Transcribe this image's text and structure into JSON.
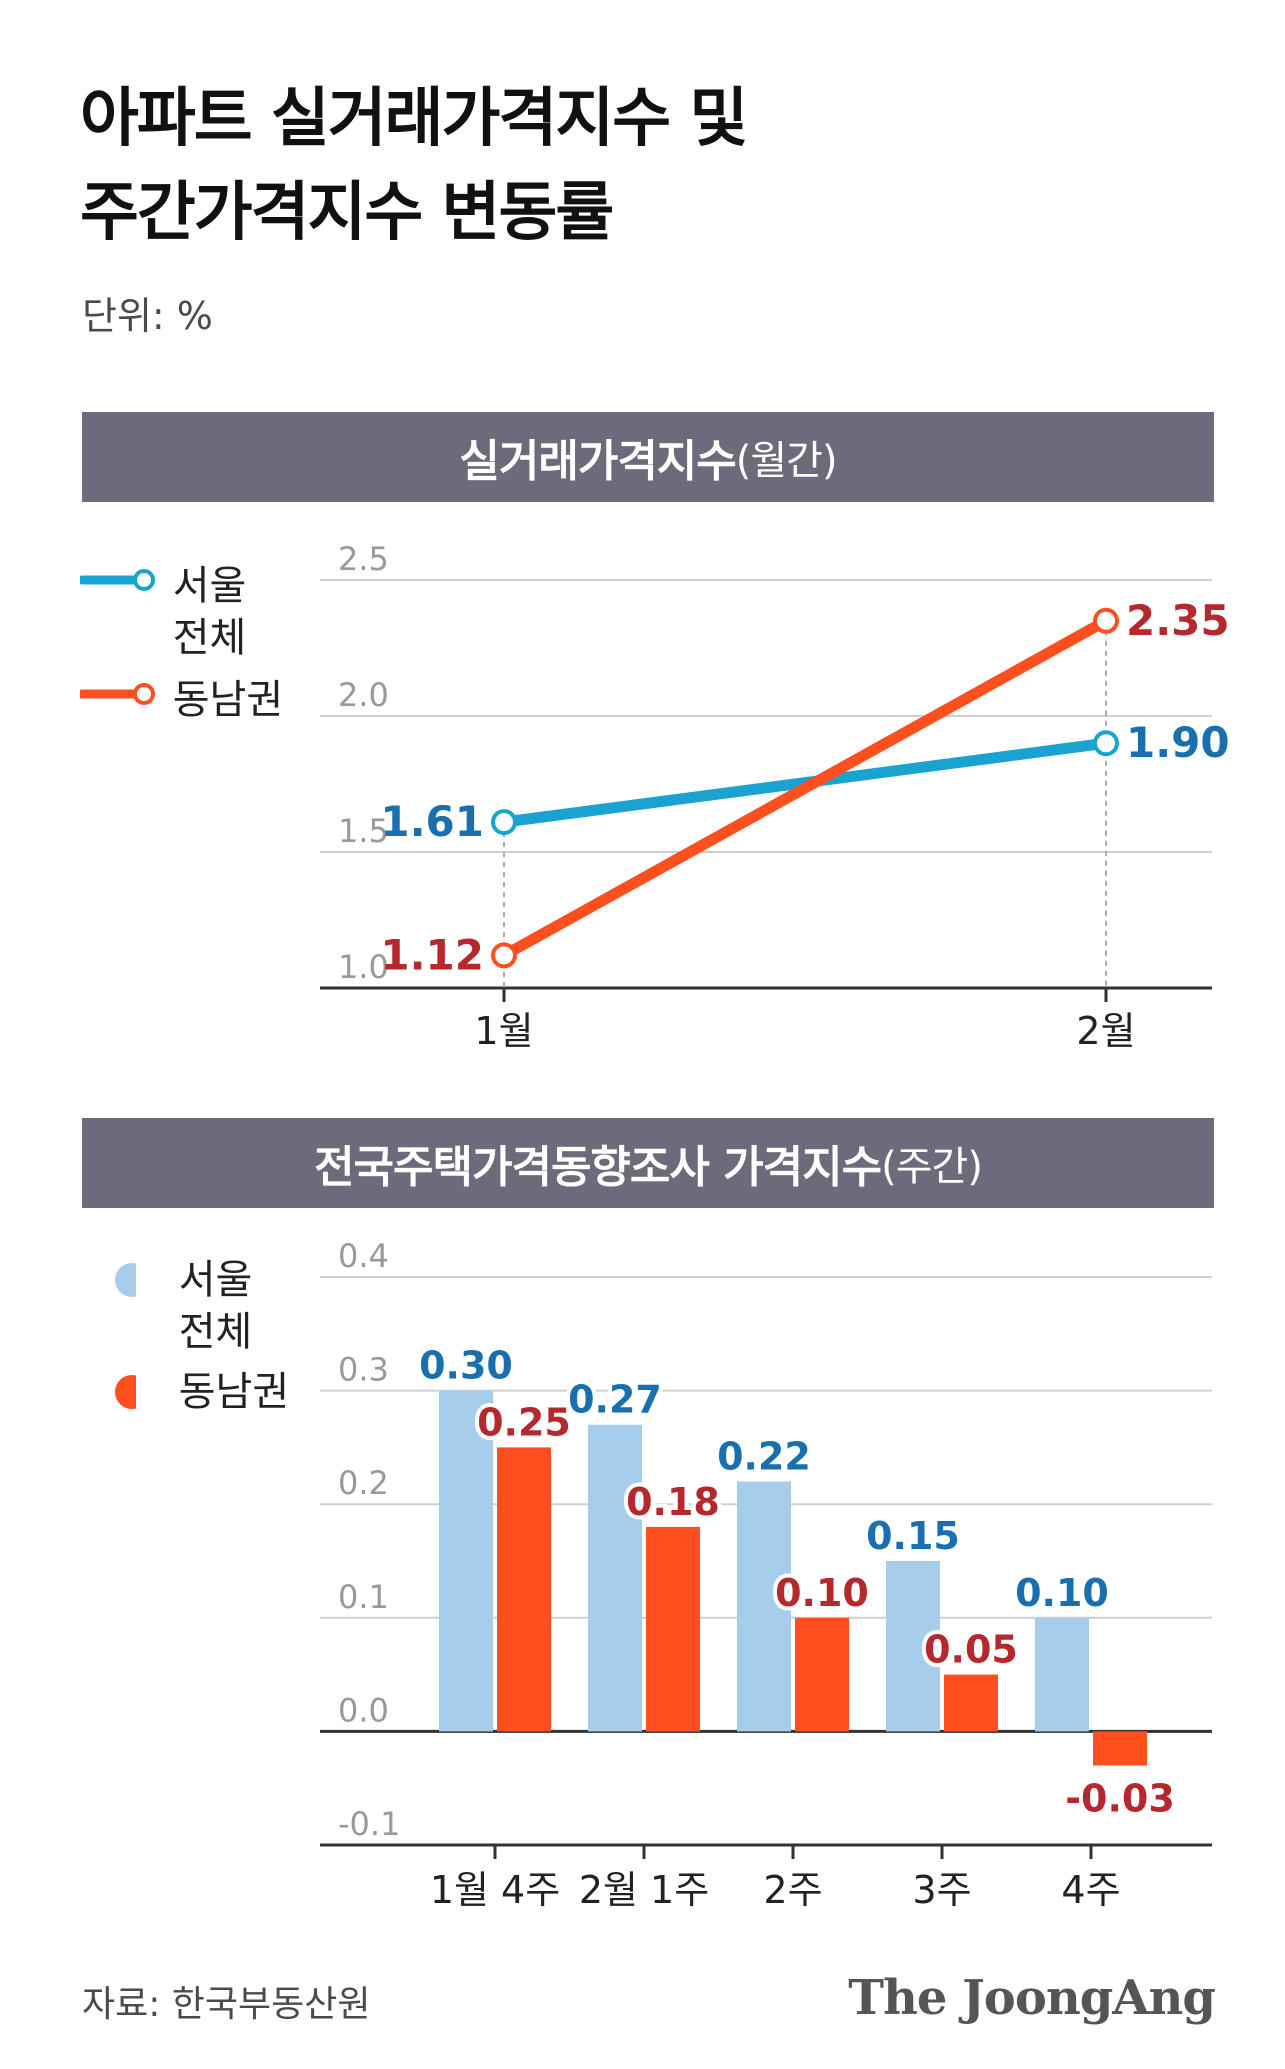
{
  "title_lines": [
    "아파트 실거래가격지수 및",
    "주간가격지수 변동률"
  ],
  "unit": "단위: %",
  "source": "자료: 한국부동산원",
  "brand": "The JoongAng",
  "colors": {
    "seoul_line": "#1aa3d0",
    "gangnam_line": "#ff4f1f",
    "seoul_bar": "#a6ceec",
    "gangnam_bar": "#ff4f1f",
    "seoul_label": "#1a6fae",
    "gangnam_label": "#b5282e",
    "banner": "#6b6b7c"
  },
  "sections": {
    "monthly": {
      "title": "실거래가격지수",
      "subtitle": "(월간)"
    },
    "weekly": {
      "title": "전국주택가격동향조사 가격지수",
      "subtitle": "(주간)"
    }
  },
  "legend": {
    "seoul": "서울\n전체",
    "gangnam": "동남권"
  },
  "chart_data": [
    {
      "type": "line",
      "title": "실거래가격지수(월간)",
      "categories": [
        "1월",
        "2월"
      ],
      "ylim": [
        1.0,
        2.5
      ],
      "yticks": [
        "1.0",
        "1.5",
        "2.0",
        "2.5"
      ],
      "series": [
        {
          "name": "서울 전체",
          "values": [
            1.61,
            1.9
          ],
          "labels": [
            "1.61",
            "1.90"
          ]
        },
        {
          "name": "동남권",
          "values": [
            1.12,
            2.35
          ],
          "labels": [
            "1.12",
            "2.35"
          ]
        }
      ]
    },
    {
      "type": "bar",
      "title": "전국주택가격동향조사 가격지수(주간)",
      "categories": [
        "1월 4주",
        "2월 1주",
        "2주",
        "3주",
        "4주"
      ],
      "ylim": [
        -0.1,
        0.4
      ],
      "yticks": [
        "-0.1",
        "0.0",
        "0.1",
        "0.2",
        "0.3",
        "0.4"
      ],
      "series": [
        {
          "name": "서울 전체",
          "values": [
            0.3,
            0.27,
            0.22,
            0.15,
            0.1
          ],
          "labels": [
            "0.30",
            "0.27",
            "0.22",
            "0.15",
            "0.10"
          ]
        },
        {
          "name": "동남권",
          "values": [
            0.25,
            0.18,
            0.1,
            0.05,
            -0.03
          ],
          "labels": [
            "0.25",
            "0.18",
            "0.10",
            "0.05",
            "-0.03"
          ]
        }
      ]
    }
  ]
}
